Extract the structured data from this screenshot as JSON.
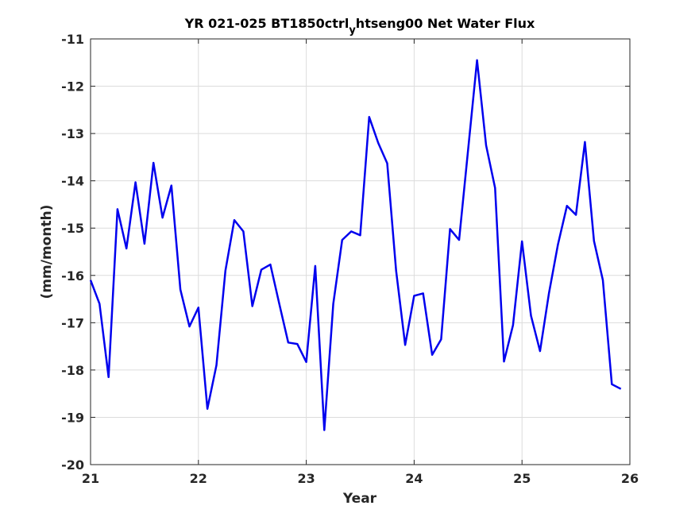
{
  "chart_data": {
    "type": "line",
    "title": {
      "before": "YR 021-025 BT1850ctrl",
      "subscript": "y",
      "after": "htseng00 Net Water Flux"
    },
    "xlabel": "Year",
    "ylabel": "(mm/month)",
    "xlim": [
      21,
      26
    ],
    "ylim": [
      -20,
      -11
    ],
    "xticks": [
      21,
      22,
      23,
      24,
      25,
      26
    ],
    "yticks": [
      -20,
      -19,
      -18,
      -17,
      -16,
      -15,
      -14,
      -13,
      -12,
      -11
    ],
    "grid": true,
    "line_color": "#0000ee",
    "series": [
      {
        "x": [
          21.0,
          21.083,
          21.167,
          21.25,
          21.333,
          21.417,
          21.5,
          21.583,
          21.667,
          21.75,
          21.833,
          21.917,
          22.0,
          22.083,
          22.167,
          22.25,
          22.333,
          22.417,
          22.5,
          22.583,
          22.667,
          22.75,
          22.833,
          22.917,
          23.0,
          23.083,
          23.167,
          23.25,
          23.333,
          23.417,
          23.5,
          23.583,
          23.667,
          23.75,
          23.833,
          23.917,
          24.0,
          24.083,
          24.167,
          24.25,
          24.333,
          24.417,
          24.5,
          24.583,
          24.667,
          24.75,
          24.833,
          24.917,
          25.0,
          25.083,
          25.167,
          25.25,
          25.333,
          25.417,
          25.5,
          25.583,
          25.667,
          25.75,
          25.833,
          25.917
        ],
        "y": [
          -16.1,
          -16.6,
          -18.15,
          -14.6,
          -15.43,
          -14.03,
          -15.33,
          -13.62,
          -14.78,
          -14.1,
          -16.3,
          -17.08,
          -16.68,
          -18.82,
          -17.9,
          -15.9,
          -14.83,
          -15.07,
          -16.65,
          -15.88,
          -15.77,
          -16.6,
          -17.42,
          -17.45,
          -17.83,
          -15.8,
          -19.27,
          -16.6,
          -15.25,
          -15.07,
          -15.15,
          -12.65,
          -13.2,
          -13.63,
          -15.9,
          -17.47,
          -16.43,
          -16.38,
          -17.68,
          -17.35,
          -15.02,
          -15.25,
          -13.35,
          -11.45,
          -13.25,
          -14.15,
          -17.82,
          -17.05,
          -15.28,
          -16.85,
          -17.6,
          -16.38,
          -15.35,
          -14.53,
          -14.72,
          -13.18,
          -15.27,
          -16.1,
          -18.3,
          -18.4
        ]
      }
    ]
  }
}
